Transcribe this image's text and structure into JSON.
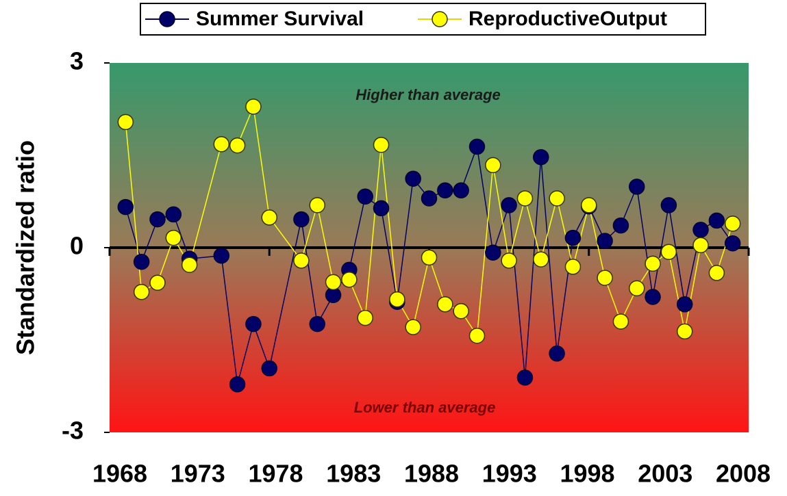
{
  "chart_data": {
    "type": "line",
    "y_label": "Standardized ratio",
    "annotations": [
      "Higher than average",
      "Lower than average"
    ],
    "x": [
      1968,
      1969,
      1970,
      1971,
      1972,
      1974,
      1975,
      1976,
      1977,
      1979,
      1980,
      1981,
      1982,
      1983,
      1984,
      1985,
      1986,
      1987,
      1988,
      1989,
      1990,
      1991,
      1992,
      1993,
      1994,
      1995,
      1996,
      1997,
      1998,
      1999,
      2000,
      2001,
      2002,
      2003,
      2004,
      2005,
      2006
    ],
    "x_labels": [
      "1968",
      "1973",
      "1978",
      "1983",
      "1988",
      "1993",
      "1998",
      "2003",
      "2008"
    ],
    "series": [
      {
        "name": "Summer Survival",
        "color": "#000066",
        "marker_stroke": "#000033",
        "values": [
          0.66,
          -0.23,
          0.46,
          0.54,
          -0.18,
          -0.13,
          -2.22,
          -1.24,
          -1.96,
          0.46,
          -1.24,
          -0.77,
          -0.36,
          0.83,
          0.64,
          -0.88,
          1.12,
          0.8,
          0.93,
          0.93,
          1.64,
          -0.08,
          0.69,
          -2.11,
          1.47,
          -1.72,
          0.16,
          0.67,
          0.11,
          0.36,
          0.99,
          -0.8,
          0.69,
          -0.92,
          0.29,
          0.44,
          0.07
        ]
      },
      {
        "name": "ReproductiveOutput",
        "color": "#ffff00",
        "marker_stroke": "#333300",
        "values": [
          2.04,
          -0.72,
          -0.57,
          0.16,
          -0.28,
          1.68,
          1.66,
          2.29,
          0.49,
          -0.21,
          0.69,
          -0.56,
          -0.52,
          -1.14,
          1.67,
          -0.84,
          -1.29,
          -0.16,
          -0.92,
          -1.03,
          -1.43,
          1.34,
          -0.21,
          0.8,
          -0.19,
          0.8,
          -0.31,
          0.69,
          -0.49,
          -1.2,
          -0.66,
          -0.26,
          -0.07,
          -1.36,
          0.04,
          -0.41,
          0.39
        ]
      }
    ],
    "xlim": [
      1967,
      2007
    ],
    "ylim": [
      -3,
      3
    ],
    "yticks": [
      -3,
      0,
      3
    ],
    "zero_line": true,
    "legend": "top",
    "background_gradient": [
      "#36996c",
      "#9a7a58",
      "#ff1414"
    ]
  }
}
